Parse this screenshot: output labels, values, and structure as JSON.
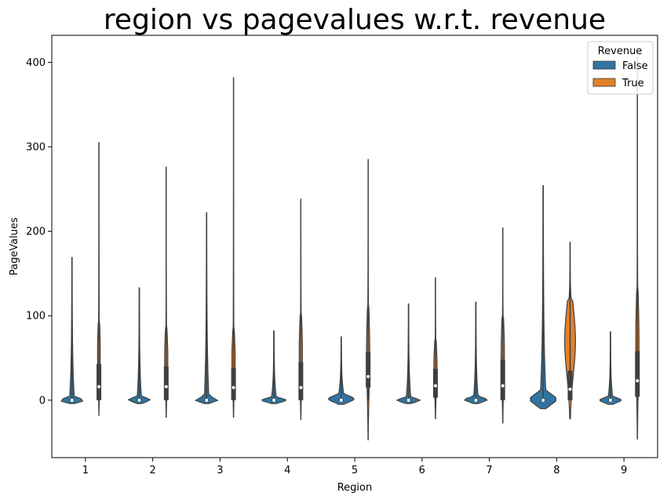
{
  "chart_data": {
    "type": "violin",
    "title": "region vs pagevalues w.r.t. revenue",
    "xlabel": "Region",
    "ylabel": "PageValues",
    "categories": [
      "1",
      "2",
      "3",
      "4",
      "5",
      "6",
      "7",
      "8",
      "9"
    ],
    "ylim": [
      -68,
      432
    ],
    "yticks": [
      0,
      100,
      200,
      300,
      400
    ],
    "legend": {
      "title": "Revenue",
      "placement": "top-right",
      "entries": [
        {
          "label": "False",
          "color": "#3274a1"
        },
        {
          "label": "True",
          "color": "#e1812c"
        }
      ]
    },
    "series": [
      {
        "name": "False",
        "color": "#3274a1",
        "violins": [
          {
            "min": 0,
            "max": 169,
            "q1": 0,
            "median": 0,
            "q3": 0,
            "lo": -4,
            "hi": 4,
            "maxw": 0.9
          },
          {
            "min": 0,
            "max": 133,
            "q1": 0,
            "median": 0,
            "q3": 0,
            "lo": -4,
            "hi": 5,
            "maxw": 0.8
          },
          {
            "min": 0,
            "max": 222,
            "q1": 0,
            "median": 0,
            "q3": 0,
            "lo": -4,
            "hi": 5,
            "maxw": 0.85
          },
          {
            "min": 0,
            "max": 82,
            "q1": 0,
            "median": 0,
            "q3": 0,
            "lo": -4,
            "hi": 4,
            "maxw": 0.9
          },
          {
            "min": 0,
            "max": 75,
            "q1": 0,
            "median": 0,
            "q3": 0,
            "lo": -5,
            "hi": 8,
            "maxw": 0.95
          },
          {
            "min": 0,
            "max": 114,
            "q1": 0,
            "median": 0,
            "q3": 0,
            "lo": -4,
            "hi": 4,
            "maxw": 0.85
          },
          {
            "min": 0,
            "max": 116,
            "q1": 0,
            "median": 0,
            "q3": 0,
            "lo": -4,
            "hi": 5,
            "maxw": 0.85
          },
          {
            "min": 0,
            "max": 254,
            "q1": 0,
            "median": 0,
            "q3": 0,
            "lo": -10,
            "hi": 12,
            "maxw": 1.0
          },
          {
            "min": 0,
            "max": 81,
            "q1": 0,
            "median": 0,
            "q3": 0,
            "lo": -5,
            "hi": 5,
            "maxw": 0.8
          }
        ]
      },
      {
        "name": "True",
        "color": "#e1812c",
        "violins": [
          {
            "min": 0,
            "max": 305,
            "q1": 0,
            "median": 16,
            "q3": 43,
            "lo": -18,
            "hi": 95,
            "maxw": 0.1
          },
          {
            "min": 0,
            "max": 276,
            "q1": 0,
            "median": 16,
            "q3": 40,
            "lo": -20,
            "hi": 85,
            "maxw": 0.12
          },
          {
            "min": 0,
            "max": 382,
            "q1": 0,
            "median": 15,
            "q3": 38,
            "lo": -20,
            "hi": 85,
            "maxw": 0.12
          },
          {
            "min": 0,
            "max": 238,
            "q1": 0,
            "median": 15,
            "q3": 45,
            "lo": -23,
            "hi": 100,
            "maxw": 0.12
          },
          {
            "min": 0,
            "max": 285,
            "q1": 15,
            "median": 28,
            "q3": 57,
            "lo": -47,
            "hi": 110,
            "maxw": 0.12
          },
          {
            "min": 0,
            "max": 145,
            "q1": 3,
            "median": 17,
            "q3": 37,
            "lo": -22,
            "hi": 70,
            "maxw": 0.12
          },
          {
            "min": 0,
            "max": 204,
            "q1": 0,
            "median": 17,
            "q3": 48,
            "lo": -27,
            "hi": 100,
            "maxw": 0.12
          },
          {
            "min": 0,
            "max": 187,
            "q1": 0,
            "median": 13,
            "q3": 35,
            "lo": -22,
            "hi": 120,
            "maxw": 0.4
          },
          {
            "min": 0,
            "max": 407,
            "q1": 4,
            "median": 23,
            "q3": 58,
            "lo": -46,
            "hi": 130,
            "maxw": 0.12
          }
        ]
      }
    ]
  }
}
